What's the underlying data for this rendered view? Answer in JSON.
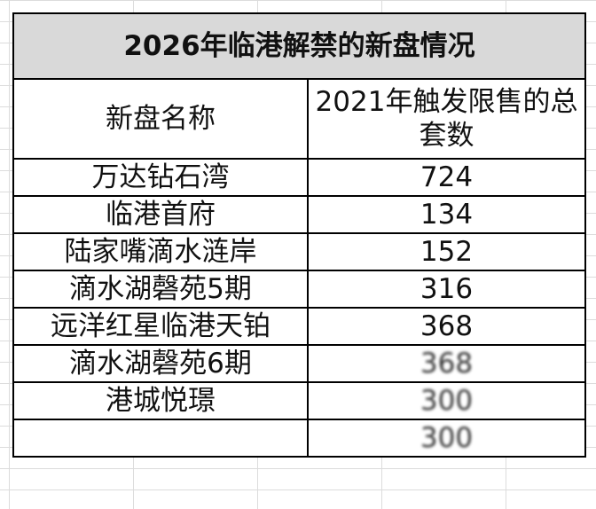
{
  "table": {
    "title": "2026年临港解禁的新盘情况",
    "headers": {
      "name": "新盘名称",
      "count": "2021年触发限售的总套数"
    },
    "rows": [
      {
        "name": "万达钻石湾",
        "count": "724"
      },
      {
        "name": "临港首府",
        "count": "134"
      },
      {
        "name": "陆家嘴滴水涟岸",
        "count": "152"
      },
      {
        "name": "滴水湖磬苑5期",
        "count": "316"
      },
      {
        "name": "远洋红星临港天铂",
        "count": "368"
      },
      {
        "name": "滴水湖磬苑6期",
        "count": "368"
      },
      {
        "name": "港城悦璟",
        "count": "300"
      },
      {
        "name": "",
        "count": "300"
      }
    ]
  }
}
